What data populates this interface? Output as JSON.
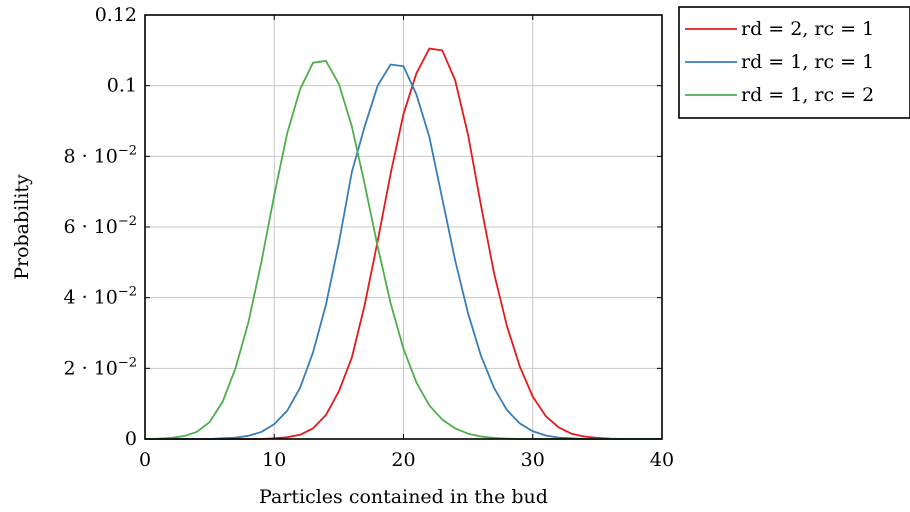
{
  "chart_data": {
    "type": "line",
    "xlabel": "Particles contained in the bud",
    "ylabel": "Probability",
    "xlim": [
      0,
      40
    ],
    "ylim": [
      0,
      0.12
    ],
    "grid": true,
    "legend_position": "outside-top-right",
    "xticks": [
      {
        "value": 0,
        "label": "0"
      },
      {
        "value": 10,
        "label": "10"
      },
      {
        "value": 20,
        "label": "20"
      },
      {
        "value": 30,
        "label": "30"
      },
      {
        "value": 40,
        "label": "40"
      }
    ],
    "yticks": [
      {
        "value": 0,
        "base": "0",
        "exp": ""
      },
      {
        "value": 0.02,
        "base": "2 · 10",
        "exp": "−2"
      },
      {
        "value": 0.04,
        "base": "4 · 10",
        "exp": "−2"
      },
      {
        "value": 0.06,
        "base": "6 · 10",
        "exp": "−2"
      },
      {
        "value": 0.08,
        "base": "8 · 10",
        "exp": "−2"
      },
      {
        "value": 0.1,
        "base": "0.1",
        "exp": ""
      },
      {
        "value": 0.12,
        "base": "0.12",
        "exp": ""
      }
    ],
    "x": [
      0,
      1,
      2,
      3,
      4,
      5,
      6,
      7,
      8,
      9,
      10,
      11,
      12,
      13,
      14,
      15,
      16,
      17,
      18,
      19,
      20,
      21,
      22,
      23,
      24,
      25,
      26,
      27,
      28,
      29,
      30,
      31,
      32,
      33,
      34,
      35,
      36,
      37,
      38,
      39,
      40
    ],
    "series": [
      {
        "name": "rd = 2, rc = 1",
        "color": "#e41a1c",
        "values": [
          0,
          0,
          0,
          0,
          0,
          0,
          0,
          0,
          0,
          0,
          0.0002,
          0.0005,
          0.0012,
          0.003,
          0.0068,
          0.0135,
          0.023,
          0.038,
          0.056,
          0.075,
          0.092,
          0.1035,
          0.1105,
          0.11,
          0.1015,
          0.086,
          0.066,
          0.047,
          0.032,
          0.0205,
          0.012,
          0.0065,
          0.0033,
          0.0015,
          0.0007,
          0.0003,
          0.0001,
          0,
          0,
          0,
          0
        ]
      },
      {
        "name": "rd = 1, rc = 1",
        "color": "#377eb8",
        "values": [
          0,
          0,
          0,
          0,
          0,
          0,
          0.0002,
          0.0004,
          0.0009,
          0.002,
          0.0042,
          0.008,
          0.0145,
          0.0245,
          0.038,
          0.0555,
          0.0755,
          0.0885,
          0.1,
          0.106,
          0.1055,
          0.0975,
          0.0855,
          0.068,
          0.0505,
          0.0355,
          0.0235,
          0.0145,
          0.0082,
          0.0044,
          0.0022,
          0.001,
          0.0004,
          0.0002,
          0,
          0,
          0,
          0,
          0,
          0,
          0
        ]
      },
      {
        "name": "rd = 1, rc = 2",
        "color": "#4daf4a",
        "values": [
          0,
          0.0001,
          0.0003,
          0.0008,
          0.002,
          0.0048,
          0.0105,
          0.02,
          0.033,
          0.05,
          0.069,
          0.0865,
          0.099,
          0.1065,
          0.107,
          0.1005,
          0.0885,
          0.072,
          0.0545,
          0.0385,
          0.0255,
          0.016,
          0.0095,
          0.0055,
          0.003,
          0.0015,
          0.0007,
          0.0003,
          0.0001,
          0,
          0,
          0,
          0,
          0,
          0,
          0,
          0,
          0,
          0,
          0,
          0
        ]
      }
    ]
  }
}
